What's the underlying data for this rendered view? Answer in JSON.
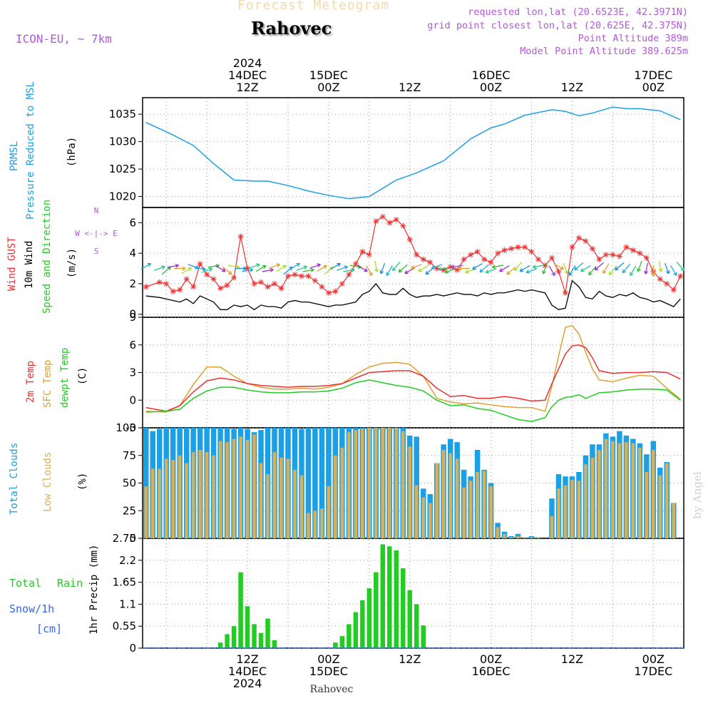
{
  "header": {
    "product_title": "Forecast Meteogram",
    "location": "Rahovec",
    "model": "ICON-EU, ~ 7km",
    "requested": "requested lon,lat (20.6523E, 42.3971N)",
    "grid_point": "grid point closest lon,lat (20.625E, 42.375N)",
    "point_altitude": "Point Altitude 389m",
    "model_altitude": "Model Point Altitude 389.625m",
    "credit": "by Angel",
    "footer_location": "Rahovec"
  },
  "colors": {
    "pressure": "#1ba0e6",
    "gust": "#ee3030",
    "wind": "#000000",
    "direction": "#22cc22",
    "temp2m": "#ee3030",
    "sfc": "#e0a030",
    "dewpt": "#22cc22",
    "total_clouds": "#1ba0e6",
    "low_clouds": "#d8b05a",
    "rain": "#22cc22",
    "snow": "#3366ee",
    "header_purple": "#b05ad6"
  },
  "chart_data": {
    "type": "meteogram",
    "time_axis": {
      "start": "2024-12-13 21Z",
      "step_hours": 1,
      "top_ticks": [
        {
          "hour": 15,
          "lines": [
            "2024",
            "14DEC",
            "12Z"
          ]
        },
        {
          "hour": 27,
          "lines": [
            "15DEC",
            "00Z"
          ]
        },
        {
          "hour": 39,
          "lines": [
            "12Z"
          ]
        },
        {
          "hour": 51,
          "lines": [
            "16DEC",
            "00Z"
          ]
        },
        {
          "hour": 63,
          "lines": [
            "12Z"
          ]
        },
        {
          "hour": 75,
          "lines": [
            "17DEC",
            "00Z"
          ]
        }
      ],
      "bottom_ticks": [
        {
          "hour": 15,
          "lines": [
            "12Z",
            "14DEC",
            "2024"
          ]
        },
        {
          "hour": 27,
          "lines": [
            "00Z",
            "15DEC"
          ]
        },
        {
          "hour": 39,
          "lines": [
            "12Z"
          ]
        },
        {
          "hour": 51,
          "lines": [
            "00Z",
            "16DEC"
          ]
        },
        {
          "hour": 63,
          "lines": [
            "12Z"
          ]
        },
        {
          "hour": 75,
          "lines": [
            "00Z",
            "17DEC"
          ]
        }
      ]
    },
    "pressure": {
      "labels": [
        "PRMSL",
        "Pressure Reduced to MSL",
        "(hPa)"
      ],
      "ylim": [
        1018,
        1038
      ],
      "yticks": [
        1020,
        1025,
        1030,
        1035
      ],
      "x": [
        0,
        4,
        7,
        10,
        13,
        16,
        18,
        21,
        24,
        27,
        30,
        33,
        37,
        40,
        44,
        48,
        51,
        53,
        56,
        60,
        62,
        64,
        66,
        69,
        71,
        73,
        76,
        79
      ],
      "values": [
        1033.5,
        1031.2,
        1029.3,
        1026.0,
        1023.0,
        1022.8,
        1022.8,
        1022.0,
        1021.0,
        1020.2,
        1019.6,
        1020.0,
        1023.0,
        1024.3,
        1026.5,
        1030.5,
        1032.5,
        1033.2,
        1034.8,
        1035.8,
        1035.5,
        1034.7,
        1035.2,
        1036.3,
        1036.0,
        1036.0,
        1035.6,
        1034.0
      ]
    },
    "wind": {
      "labels": [
        "Wind GUST",
        "10m Wind",
        "Speed and Direction",
        "(m/s)"
      ],
      "compass": [
        "N",
        "W <-|-> E",
        "S"
      ],
      "ylim": [
        -0.2,
        7
      ],
      "yticks": [
        0,
        2,
        4,
        6
      ],
      "x": [
        0,
        2,
        3,
        4,
        5,
        6,
        7,
        8,
        9,
        10,
        11,
        12,
        13,
        14,
        15,
        16,
        17,
        18,
        19,
        20,
        21,
        22,
        23,
        24,
        25,
        26,
        27,
        28,
        29,
        30,
        31,
        32,
        33,
        34,
        35,
        36,
        37,
        38,
        39,
        40,
        41,
        42,
        43,
        44,
        45,
        46,
        47,
        48,
        49,
        50,
        51,
        52,
        53,
        54,
        55,
        56,
        57,
        58,
        59,
        60,
        61,
        62,
        63,
        64,
        65,
        66,
        67,
        68,
        69,
        70,
        71,
        72,
        73,
        74,
        75,
        76,
        77,
        78,
        79
      ],
      "gust": [
        1.8,
        2.1,
        2.0,
        1.5,
        1.6,
        2.3,
        1.8,
        3.3,
        2.6,
        2.3,
        1.7,
        1.9,
        2.4,
        5.1,
        3.0,
        2.0,
        2.1,
        1.8,
        2.0,
        1.7,
        2.5,
        2.6,
        2.5,
        2.5,
        2.2,
        1.8,
        1.4,
        1.5,
        2.0,
        2.6,
        3.3,
        4.1,
        3.9,
        6.1,
        6.4,
        6.0,
        6.2,
        5.8,
        4.9,
        3.9,
        3.6,
        3.4,
        3.0,
        2.9,
        3.1,
        2.9,
        3.6,
        3.9,
        4.1,
        3.6,
        3.4,
        4.0,
        4.2,
        4.3,
        4.4,
        4.4,
        4.1,
        3.6,
        3.2,
        3.7,
        2.8,
        1.4,
        4.4,
        5.0,
        4.8,
        4.3,
        3.6,
        3.9,
        3.9,
        3.8,
        4.4,
        4.2,
        4.0,
        3.7,
        2.8,
        2.3,
        2.0,
        1.6,
        2.5
      ],
      "wind": [
        1.2,
        1.1,
        1.0,
        0.9,
        0.8,
        1.0,
        0.7,
        1.2,
        1.0,
        0.8,
        0.3,
        0.3,
        0.6,
        0.5,
        0.6,
        0.3,
        0.6,
        0.5,
        0.5,
        0.4,
        0.8,
        0.9,
        0.8,
        0.8,
        0.7,
        0.6,
        0.5,
        0.6,
        0.6,
        0.7,
        0.8,
        1.3,
        1.5,
        2.0,
        1.4,
        1.3,
        1.3,
        1.7,
        1.3,
        1.1,
        1.2,
        1.2,
        1.3,
        1.2,
        1.3,
        1.4,
        1.3,
        1.3,
        1.2,
        1.4,
        1.3,
        1.4,
        1.4,
        1.5,
        1.6,
        1.5,
        1.6,
        1.5,
        1.4,
        0.6,
        0.3,
        0.4,
        2.2,
        1.8,
        1.1,
        1.0,
        1.5,
        1.2,
        1.1,
        1.3,
        1.2,
        1.4,
        1.1,
        1.0,
        0.8,
        0.9,
        0.7,
        0.5,
        1.0
      ],
      "directions_deg": [
        60,
        70,
        50,
        80,
        90,
        60,
        110,
        100,
        70,
        80,
        120,
        130,
        100,
        90,
        80,
        70,
        60,
        80,
        70,
        60,
        50,
        60,
        70,
        80,
        70,
        60,
        50,
        60,
        70,
        80,
        100,
        120,
        150,
        170,
        200,
        210,
        220,
        230,
        240,
        250,
        240,
        230,
        250,
        260,
        250,
        260,
        270,
        250,
        240,
        230,
        250,
        260,
        240,
        230,
        220,
        240,
        250,
        260,
        200,
        150,
        120,
        160,
        210,
        230,
        240,
        220,
        230,
        210,
        220,
        230,
        220,
        210,
        200,
        190,
        180,
        170,
        160,
        150,
        140
      ]
    },
    "temperature": {
      "labels": [
        "2m Temp",
        "SFC Temp",
        "dewpt Temp",
        "(C)"
      ],
      "ylim": [
        -3,
        9
      ],
      "yticks": [
        -3,
        0,
        3,
        6,
        9
      ],
      "x": [
        0,
        3,
        5,
        7,
        9,
        11,
        13,
        15,
        17,
        19,
        21,
        23,
        25,
        27,
        29,
        31,
        33,
        35,
        37,
        39,
        41,
        43,
        45,
        47,
        49,
        51,
        53,
        55,
        57,
        59,
        60,
        61,
        62,
        63,
        64,
        65,
        66,
        67,
        69,
        71,
        73,
        75,
        77,
        79
      ],
      "temp2m": [
        -0.8,
        -1.2,
        -0.6,
        0.9,
        2.1,
        2.4,
        2.2,
        1.8,
        1.6,
        1.5,
        1.4,
        1.5,
        1.5,
        1.6,
        1.8,
        2.4,
        3.0,
        3.1,
        3.2,
        3.2,
        2.6,
        1.3,
        0.4,
        0.5,
        0.2,
        0.2,
        0.4,
        0.2,
        -0.1,
        0.0,
        1.8,
        3.4,
        5.0,
        5.9,
        6.0,
        5.7,
        4.6,
        3.2,
        2.9,
        3.0,
        3.0,
        3.1,
        3.0,
        2.3
      ],
      "sfc": [
        -1.2,
        -1.3,
        -0.6,
        1.7,
        3.6,
        3.6,
        2.6,
        1.8,
        1.4,
        1.2,
        1.2,
        1.3,
        1.2,
        1.4,
        1.8,
        2.8,
        3.6,
        4.0,
        4.1,
        3.9,
        2.6,
        0.2,
        -0.2,
        -0.4,
        -0.3,
        -0.5,
        -0.7,
        -0.8,
        -0.8,
        -1.2,
        1.5,
        4.8,
        7.9,
        8.1,
        7.2,
        5.2,
        3.4,
        2.2,
        2.0,
        2.4,
        2.7,
        2.6,
        1.3,
        0.1
      ],
      "dewpt": [
        -1.3,
        -1.2,
        -1.0,
        0.2,
        1.0,
        1.4,
        1.4,
        1.1,
        0.9,
        0.8,
        0.8,
        0.9,
        0.9,
        1.0,
        1.3,
        1.9,
        2.2,
        1.9,
        1.6,
        1.4,
        1.0,
        0.0,
        -0.6,
        -0.5,
        -0.9,
        -1.1,
        -1.6,
        -2.1,
        -2.3,
        -1.9,
        -0.7,
        0.0,
        0.3,
        0.4,
        0.6,
        0.2,
        0.5,
        0.8,
        0.9,
        1.1,
        1.2,
        1.2,
        1.1,
        0.0
      ]
    },
    "clouds": {
      "labels": [
        "Total Clouds",
        "Low Clouds",
        "(%)"
      ],
      "ylim": [
        0,
        100
      ],
      "yticks": [
        0,
        25,
        50,
        75,
        100
      ],
      "total": [
        100,
        97,
        99,
        100,
        100,
        100,
        100,
        100,
        100,
        100,
        100,
        100,
        100,
        99,
        100,
        99,
        96,
        98,
        100,
        100,
        100,
        100,
        100,
        99,
        100,
        100,
        100,
        100,
        100,
        100,
        100,
        100,
        100,
        100,
        100,
        100,
        100,
        100,
        100,
        93,
        92,
        45,
        40,
        68,
        85,
        90,
        87,
        62,
        56,
        80,
        62,
        50,
        14,
        6,
        2,
        4,
        1,
        2,
        1,
        0,
        36,
        58,
        56,
        56,
        60,
        75,
        85,
        85,
        95,
        92,
        97,
        93,
        90,
        86,
        76,
        88,
        64,
        69,
        32
      ],
      "low": [
        47,
        63,
        63,
        72,
        71,
        75,
        68,
        78,
        80,
        78,
        75,
        88,
        87,
        90,
        92,
        89,
        94,
        68,
        58,
        78,
        73,
        72,
        62,
        57,
        23,
        25,
        27,
        47,
        75,
        82,
        96,
        98,
        99,
        100,
        100,
        100,
        100,
        100,
        97,
        83,
        48,
        37,
        32,
        68,
        80,
        77,
        72,
        46,
        52,
        60,
        61,
        47,
        10,
        4,
        1,
        2,
        1,
        1,
        1,
        0,
        20,
        45,
        48,
        53,
        52,
        67,
        73,
        80,
        90,
        88,
        86,
        87,
        86,
        82,
        60,
        80,
        57,
        68,
        32
      ]
    },
    "precip": {
      "labels": [
        "Total",
        "Rain",
        "Snow/1h",
        "[cm]",
        "1hr Precip (mm)"
      ],
      "ylim": [
        0,
        2.75
      ],
      "yticks": [
        0,
        0.55,
        1.1,
        1.65,
        2.2,
        2.75
      ],
      "rain": [
        0,
        0,
        0,
        0,
        0,
        0,
        0,
        0,
        0,
        0,
        0,
        0.14,
        0.35,
        0.55,
        1.9,
        1.05,
        0.6,
        0.38,
        0.74,
        0.2,
        0,
        0,
        0,
        0,
        0,
        0,
        0,
        0,
        0.14,
        0.3,
        0.6,
        0.9,
        1.2,
        1.5,
        1.9,
        2.6,
        2.55,
        2.45,
        2.0,
        1.45,
        1.1,
        0.57,
        0,
        0,
        0,
        0,
        0,
        0,
        0,
        0,
        0,
        0,
        0,
        0,
        0,
        0,
        0,
        0,
        0,
        0,
        0,
        0,
        0,
        0,
        0,
        0,
        0,
        0,
        0,
        0,
        0,
        0,
        0,
        0,
        0,
        0,
        0,
        0,
        0
      ]
    }
  }
}
